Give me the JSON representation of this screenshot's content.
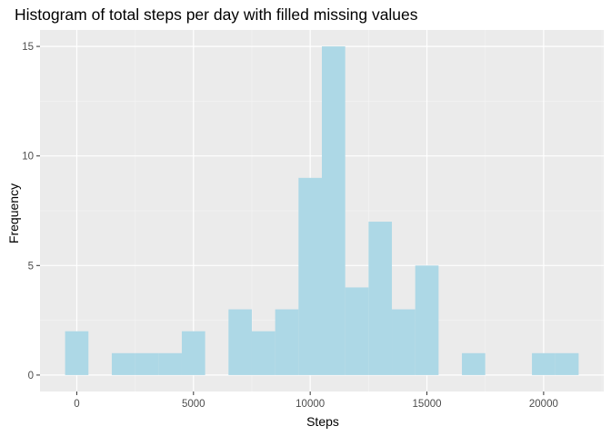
{
  "chart_data": {
    "type": "bar",
    "title": "Histogram of total steps per day with filled missing values",
    "xlabel": "Steps",
    "ylabel": "Frequency",
    "bin_width": 1000,
    "bins": [
      {
        "start": -500,
        "end": 500,
        "count": 2
      },
      {
        "start": 500,
        "end": 1500,
        "count": 0
      },
      {
        "start": 1500,
        "end": 2500,
        "count": 1
      },
      {
        "start": 2500,
        "end": 3500,
        "count": 1
      },
      {
        "start": 3500,
        "end": 4500,
        "count": 1
      },
      {
        "start": 4500,
        "end": 5500,
        "count": 2
      },
      {
        "start": 5500,
        "end": 6500,
        "count": 0
      },
      {
        "start": 6500,
        "end": 7500,
        "count": 3
      },
      {
        "start": 7500,
        "end": 8500,
        "count": 2
      },
      {
        "start": 8500,
        "end": 9500,
        "count": 3
      },
      {
        "start": 9500,
        "end": 10500,
        "count": 9
      },
      {
        "start": 10500,
        "end": 11500,
        "count": 15
      },
      {
        "start": 11500,
        "end": 12500,
        "count": 4
      },
      {
        "start": 12500,
        "end": 13500,
        "count": 7
      },
      {
        "start": 13500,
        "end": 14500,
        "count": 3
      },
      {
        "start": 14500,
        "end": 15500,
        "count": 5
      },
      {
        "start": 15500,
        "end": 16500,
        "count": 0
      },
      {
        "start": 16500,
        "end": 17500,
        "count": 1
      },
      {
        "start": 17500,
        "end": 18500,
        "count": 0
      },
      {
        "start": 18500,
        "end": 19500,
        "count": 0
      },
      {
        "start": 19500,
        "end": 20500,
        "count": 1
      },
      {
        "start": 20500,
        "end": 21500,
        "count": 1
      }
    ],
    "xlim": [
      -1575,
      22575
    ],
    "ylim": [
      -0.75,
      15.75
    ],
    "x_ticks": [
      0,
      5000,
      10000,
      15000,
      20000
    ],
    "x_tick_labels": [
      "0",
      "5000",
      "10000",
      "15000",
      "20000"
    ],
    "y_ticks": [
      0,
      5,
      10,
      15
    ],
    "y_tick_labels": [
      "0",
      "5",
      "10",
      "15"
    ],
    "grid": true,
    "legend": "none",
    "colors": {
      "bar_fill": "#add8e6",
      "panel_background": "#ebebeb",
      "grid_major": "#ffffff",
      "grid_minor": "#f5f5f5",
      "tick_mark": "#333333"
    }
  }
}
